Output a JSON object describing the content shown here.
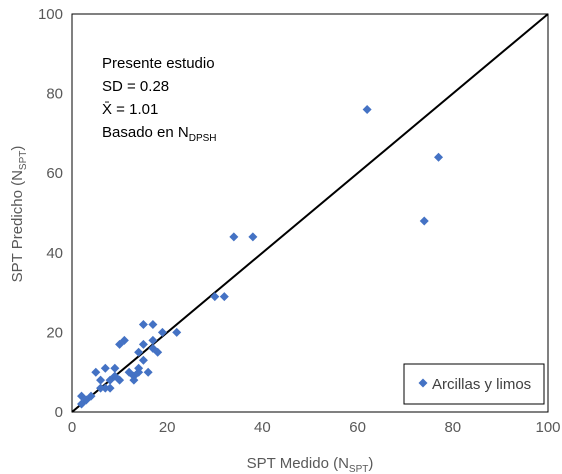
{
  "chart_data": {
    "type": "scatter",
    "xlabel": {
      "main": "SPT Medido (N",
      "sub": "SPT",
      "end": ")"
    },
    "ylabel": {
      "main": "SPT Predicho (N",
      "sub": "SPT",
      "end": ")"
    },
    "xlim": [
      0,
      100
    ],
    "ylim": [
      0,
      100
    ],
    "x_ticks": [
      "0",
      "20",
      "40",
      "60",
      "80",
      "100"
    ],
    "y_ticks": [
      "0",
      "20",
      "40",
      "60",
      "80",
      "100"
    ],
    "grid": false,
    "reference_line": {
      "from": [
        0,
        0
      ],
      "to": [
        100,
        100
      ],
      "color": "#000000"
    },
    "annotations": {
      "line1": "Presente estudio",
      "line2": "SD = 0.28",
      "line3": "X̄ = 1.01",
      "line4_main": "Basado en N",
      "line4_sub": "DPSH"
    },
    "legend": {
      "placement": "bottom-right",
      "border": true
    },
    "series": [
      {
        "name": "Arcillas y limos",
        "color": "#4472C4",
        "marker": "diamond",
        "points": [
          [
            2,
            2
          ],
          [
            2,
            4
          ],
          [
            3,
            3
          ],
          [
            4,
            4
          ],
          [
            5,
            10
          ],
          [
            6,
            8
          ],
          [
            6,
            6
          ],
          [
            7,
            11
          ],
          [
            7,
            6
          ],
          [
            8,
            6
          ],
          [
            8,
            8
          ],
          [
            9,
            11
          ],
          [
            9,
            9
          ],
          [
            10,
            8
          ],
          [
            10,
            17
          ],
          [
            11,
            18
          ],
          [
            12,
            10
          ],
          [
            13,
            8
          ],
          [
            13,
            9
          ],
          [
            14,
            15
          ],
          [
            14,
            11
          ],
          [
            14,
            10
          ],
          [
            15,
            22
          ],
          [
            15,
            17
          ],
          [
            15,
            13
          ],
          [
            16,
            10
          ],
          [
            17,
            22
          ],
          [
            17,
            18
          ],
          [
            17,
            16
          ],
          [
            18,
            15
          ],
          [
            19,
            20
          ],
          [
            22,
            20
          ],
          [
            30,
            29
          ],
          [
            32,
            29
          ],
          [
            34,
            44
          ],
          [
            38,
            44
          ],
          [
            62,
            76
          ],
          [
            74,
            48
          ],
          [
            77,
            64
          ]
        ]
      }
    ]
  }
}
